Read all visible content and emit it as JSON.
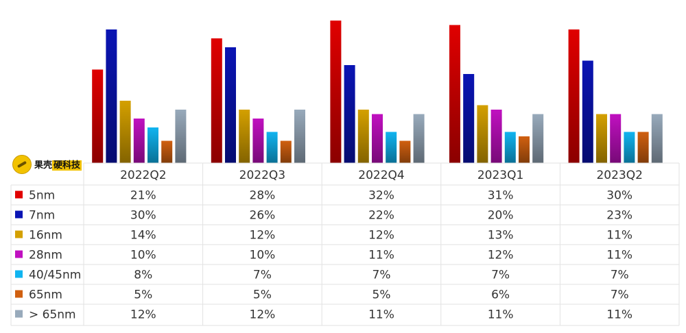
{
  "logo": {
    "name_part1": "果壳",
    "name_part2": "硬科技"
  },
  "chart_data": {
    "type": "bar",
    "categories": [
      "2022Q2",
      "2022Q3",
      "2022Q4",
      "2023Q1",
      "2023Q2"
    ],
    "series": [
      {
        "name": "5nm",
        "color": "#e00000",
        "labels": [
          "21%",
          "28%",
          "32%",
          "31%",
          "30%"
        ],
        "values": [
          21,
          28,
          32,
          31,
          30
        ]
      },
      {
        "name": "7nm",
        "color": "#0a14b4",
        "labels": [
          "30%",
          "26%",
          "22%",
          "20%",
          "23%"
        ],
        "values": [
          30,
          26,
          22,
          20,
          23
        ]
      },
      {
        "name": "16nm",
        "color": "#d4a000",
        "labels": [
          "14%",
          "12%",
          "12%",
          "13%",
          "11%"
        ],
        "values": [
          14,
          12,
          12,
          13,
          11
        ]
      },
      {
        "name": "28nm",
        "color": "#c010c0",
        "labels": [
          "10%",
          "10%",
          "11%",
          "12%",
          "11%"
        ],
        "values": [
          10,
          10,
          11,
          12,
          11
        ]
      },
      {
        "name": "40/45nm",
        "color": "#10b4f0",
        "labels": [
          "8%",
          "7%",
          "7%",
          "7%",
          "7%"
        ],
        "values": [
          8,
          7,
          7,
          7,
          7
        ]
      },
      {
        "name": "65nm",
        "color": "#d06010",
        "labels": [
          "5%",
          "5%",
          "5%",
          "6%",
          "7%"
        ],
        "values": [
          5,
          5,
          5,
          6,
          7
        ]
      },
      {
        "name": "> 65nm",
        "color": "#98aabb",
        "labels": [
          "12%",
          "12%",
          "11%",
          "11%",
          "11%"
        ],
        "values": [
          12,
          12,
          11,
          11,
          11
        ]
      }
    ],
    "ylim": [
      0,
      32
    ],
    "legend": "table-left",
    "grid": false
  }
}
